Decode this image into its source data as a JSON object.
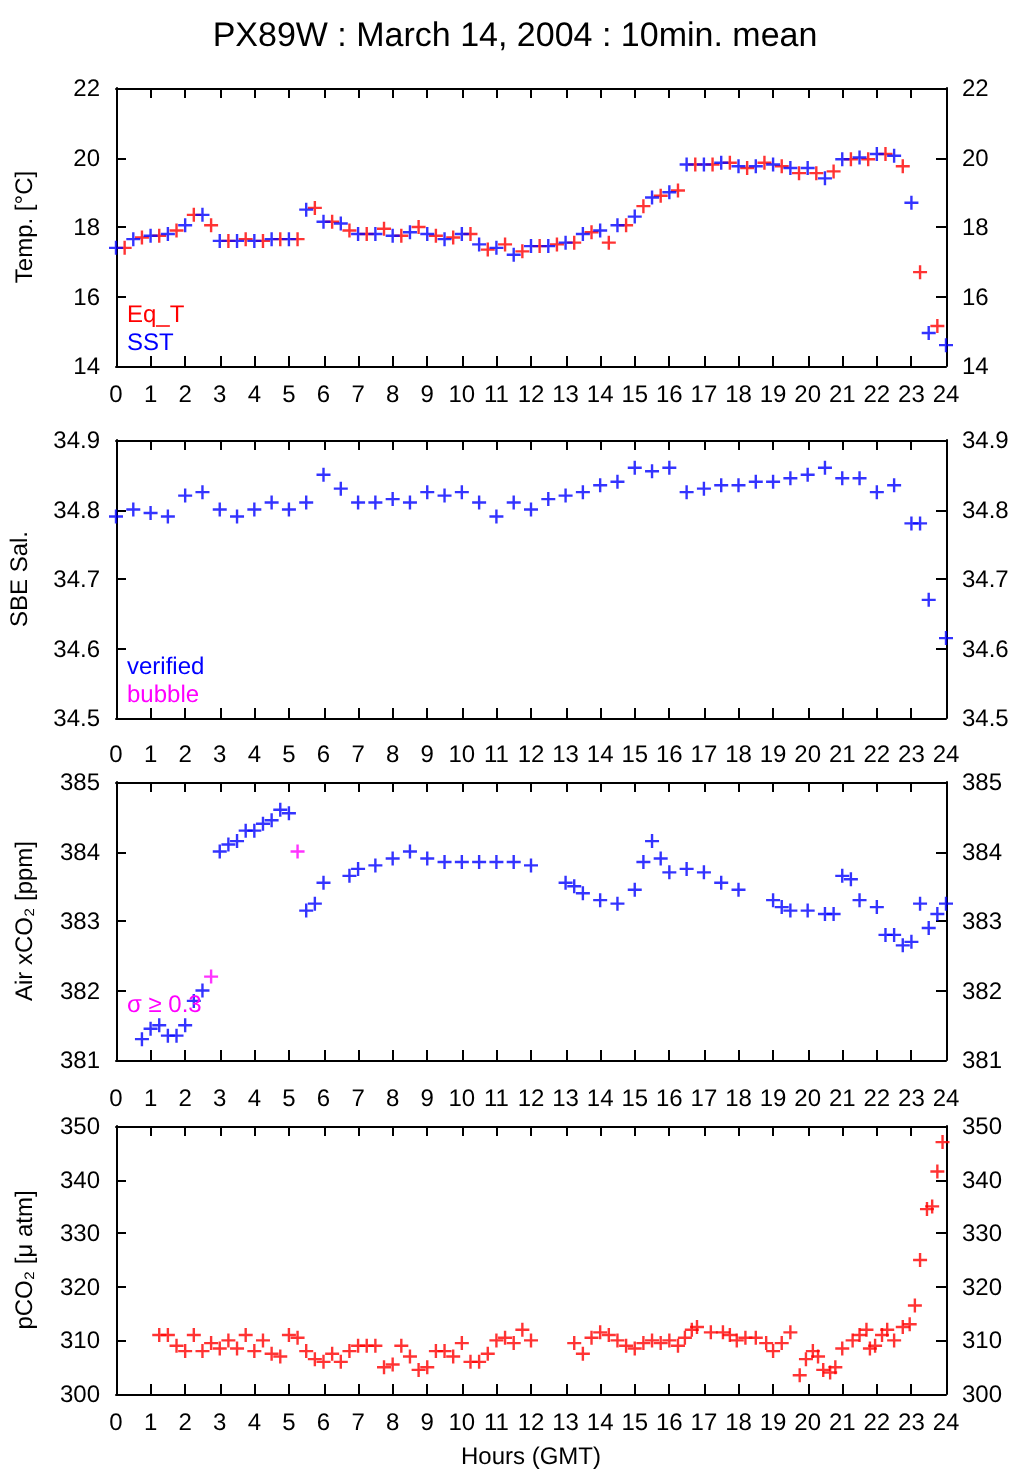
{
  "chart_data": [
    {
      "type": "scatter",
      "title": "PX89W : March 14, 2004 : 10min. mean",
      "ylabel": "Temp. [°C]",
      "marker": "cross",
      "legend": "bottom left",
      "grid": false,
      "xlim": [
        0,
        24
      ],
      "xticks": [
        0,
        1,
        2,
        3,
        4,
        5,
        6,
        7,
        8,
        9,
        10,
        11,
        12,
        13,
        14,
        15,
        16,
        17,
        18,
        19,
        20,
        21,
        22,
        23,
        24
      ],
      "ylim": [
        14,
        22
      ],
      "yticks": [
        14,
        16,
        18,
        20,
        22
      ],
      "y2lim": [
        14,
        22
      ],
      "y2ticks": [
        14,
        16,
        18,
        20,
        22
      ],
      "series": [
        {
          "name": "Eq_T",
          "color": "#ff0000",
          "x": [
            0.25,
            0.75,
            1.25,
            1.75,
            2.25,
            2.75,
            3.25,
            3.75,
            4.25,
            4.75,
            5.25,
            5.75,
            6.25,
            6.75,
            7.25,
            7.75,
            8.25,
            8.75,
            9.25,
            9.75,
            10.25,
            10.75,
            11.25,
            11.75,
            12.25,
            12.75,
            13.25,
            13.75,
            14.25,
            14.75,
            15.25,
            15.75,
            16.25,
            16.75,
            17.25,
            17.75,
            18.25,
            18.75,
            19.25,
            19.75,
            20.25,
            20.75,
            21.25,
            21.75,
            22.25,
            22.75,
            23.25,
            23.75
          ],
          "values": [
            17.4,
            17.7,
            17.75,
            17.9,
            18.35,
            18.05,
            17.6,
            17.65,
            17.6,
            17.65,
            17.65,
            18.55,
            18.15,
            17.9,
            17.8,
            17.95,
            17.75,
            18.0,
            17.75,
            17.7,
            17.8,
            17.35,
            17.5,
            17.3,
            17.45,
            17.5,
            17.55,
            17.85,
            17.55,
            18.05,
            18.6,
            18.9,
            19.05,
            19.8,
            19.8,
            19.85,
            19.7,
            19.85,
            19.75,
            19.55,
            19.55,
            19.6,
            19.95,
            19.95,
            20.1,
            19.75,
            16.7,
            15.15
          ]
        },
        {
          "name": "SST",
          "color": "#0000ff",
          "x": [
            0,
            0.5,
            1,
            1.5,
            2,
            2.5,
            3,
            3.5,
            4,
            4.5,
            5,
            5.5,
            6,
            6.5,
            7,
            7.5,
            8,
            8.5,
            9,
            9.5,
            10,
            10.5,
            11,
            11.5,
            12,
            12.5,
            13,
            13.5,
            14,
            14.5,
            15,
            15.5,
            16,
            16.5,
            17,
            17.5,
            18,
            18.5,
            19,
            19.5,
            20,
            20.5,
            21,
            21.5,
            22,
            22.5,
            23,
            23.5,
            24
          ],
          "values": [
            17.4,
            17.65,
            17.75,
            17.8,
            18.05,
            18.35,
            17.6,
            17.6,
            17.6,
            17.65,
            17.65,
            18.5,
            18.15,
            18.1,
            17.8,
            17.8,
            17.75,
            17.85,
            17.8,
            17.65,
            17.8,
            17.5,
            17.4,
            17.2,
            17.45,
            17.45,
            17.55,
            17.8,
            17.9,
            18.05,
            18.3,
            18.85,
            19.0,
            19.8,
            19.8,
            19.85,
            19.75,
            19.75,
            19.8,
            19.7,
            19.7,
            19.4,
            19.95,
            20.0,
            20.1,
            20.05,
            18.7,
            14.95,
            14.6
          ]
        }
      ]
    },
    {
      "type": "scatter",
      "ylabel": "SBE Sal.",
      "marker": "cross",
      "legend": "bottom left",
      "grid": false,
      "tick_labels": "y",
      "xlim": [
        0,
        24
      ],
      "xticks": [
        0,
        1,
        2,
        3,
        4,
        5,
        6,
        7,
        8,
        9,
        10,
        11,
        12,
        13,
        14,
        15,
        16,
        17,
        18,
        19,
        20,
        21,
        22,
        23,
        24
      ],
      "ylim": [
        34.5,
        34.9
      ],
      "yticks": [
        34.5,
        34.6,
        34.7,
        34.8,
        34.9
      ],
      "y2lim": [
        34.5,
        34.9
      ],
      "y2ticks": [
        34.5,
        34.6,
        34.7,
        34.8,
        34.9
      ],
      "series": [
        {
          "name": "verified",
          "color": "#0000ff",
          "x": [
            0,
            0.5,
            1,
            1.5,
            2,
            2.5,
            3,
            3.5,
            4,
            4.5,
            5,
            5.5,
            6,
            6.5,
            7,
            7.5,
            8,
            8.5,
            9,
            9.5,
            10,
            10.5,
            11,
            11.5,
            12,
            12.5,
            13,
            13.5,
            14,
            14.5,
            15,
            15.5,
            16,
            16.5,
            17,
            17.5,
            18,
            18.5,
            19,
            19.5,
            20,
            20.5,
            21,
            21.5,
            22,
            22.5,
            23,
            23.25,
            23.5,
            24
          ],
          "values": [
            34.79,
            34.8,
            34.795,
            34.79,
            34.82,
            34.825,
            34.8,
            34.79,
            34.8,
            34.81,
            34.8,
            34.81,
            34.85,
            34.83,
            34.81,
            34.81,
            34.815,
            34.81,
            34.825,
            34.82,
            34.825,
            34.81,
            34.79,
            34.81,
            34.8,
            34.815,
            34.82,
            34.825,
            34.835,
            34.84,
            34.86,
            34.855,
            34.86,
            34.825,
            34.83,
            34.835,
            34.835,
            34.84,
            34.84,
            34.845,
            34.85,
            34.86,
            34.845,
            34.845,
            34.825,
            34.835,
            34.78,
            34.78,
            34.67,
            34.615
          ]
        },
        {
          "name": "bubble",
          "color": "#ff00ff"
        }
      ]
    },
    {
      "type": "scatter",
      "ylabel": "Air xCO₂ [ppm]",
      "marker": "cross",
      "legend": "bottom left",
      "grid": false,
      "tick_labels": "y",
      "xlim": [
        0,
        24
      ],
      "xticks": [
        0,
        1,
        2,
        3,
        4,
        5,
        6,
        7,
        8,
        9,
        10,
        11,
        12,
        13,
        14,
        15,
        16,
        17,
        18,
        19,
        20,
        21,
        22,
        23,
        24
      ],
      "x2lim": [
        0,
        24
      ],
      "x2ticks": [
        0,
        1,
        2,
        3,
        4,
        5,
        6,
        7,
        8,
        9,
        10,
        11,
        12,
        13,
        14,
        15,
        16,
        17,
        18,
        19,
        20,
        21,
        22,
        23,
        24
      ],
      "ylim": [
        381,
        385
      ],
      "yticks": [
        381,
        382,
        383,
        384,
        385
      ],
      "y2lim": [
        381,
        385
      ],
      "y2ticks": [
        381,
        382,
        383,
        384,
        385
      ],
      "series": [
        {
          "color": "#0000ff",
          "x": [
            0.75,
            1,
            1.25,
            1.5,
            1.75,
            2,
            2.25,
            2.5,
            3,
            3.25,
            3.5,
            3.75,
            4,
            4.25,
            4.5,
            4.75,
            5,
            5.5,
            5.75,
            6,
            6.75,
            7,
            7.5,
            8,
            8.5,
            9,
            9.5,
            10,
            10.5,
            11,
            11.5,
            12,
            13,
            13.25,
            13.5,
            14,
            14.5,
            15,
            15.25,
            15.5,
            15.75,
            16,
            16.5,
            17,
            17.5,
            18,
            19,
            19.25,
            19.5,
            20,
            20.5,
            20.75,
            21,
            21.25,
            21.5,
            22,
            22.25,
            22.5,
            22.75,
            23,
            23.25,
            23.5,
            23.75,
            24
          ],
          "values": [
            381.3,
            381.45,
            381.5,
            381.35,
            381.35,
            381.5,
            381.85,
            382.0,
            384.0,
            384.1,
            384.15,
            384.3,
            384.3,
            384.4,
            384.45,
            384.6,
            384.55,
            383.15,
            383.25,
            383.55,
            383.65,
            383.75,
            383.8,
            383.9,
            384.0,
            383.9,
            383.85,
            383.85,
            383.85,
            383.85,
            383.85,
            383.8,
            383.55,
            383.5,
            383.4,
            383.3,
            383.25,
            383.45,
            383.85,
            384.15,
            383.9,
            383.7,
            383.75,
            383.7,
            383.55,
            383.45,
            383.3,
            383.2,
            383.15,
            383.15,
            383.1,
            383.1,
            383.65,
            383.6,
            383.3,
            383.2,
            382.8,
            382.8,
            382.65,
            382.7,
            383.25,
            382.9,
            383.1,
            383.25
          ]
        },
        {
          "name": "σ ≥ 0.3",
          "color": "#ff00ff",
          "x": [
            2.75,
            5.25
          ],
          "values": [
            382.2,
            384.0
          ]
        }
      ]
    },
    {
      "type": "scatter",
      "ylabel": "pCO₂ [μ atm]",
      "xlabel": "Hours (GMT)",
      "marker": "cross",
      "grid": false,
      "xlim": [
        0,
        24
      ],
      "xticks": [
        0,
        1,
        2,
        3,
        4,
        5,
        6,
        7,
        8,
        9,
        10,
        11,
        12,
        13,
        14,
        15,
        16,
        17,
        18,
        19,
        20,
        21,
        22,
        23,
        24
      ],
      "x2lim": [
        0,
        24
      ],
      "x2ticks": [
        0,
        1,
        2,
        3,
        4,
        5,
        6,
        7,
        8,
        9,
        10,
        11,
        12,
        13,
        14,
        15,
        16,
        17,
        18,
        19,
        20,
        21,
        22,
        23,
        24
      ],
      "ylim": [
        300,
        350
      ],
      "yticks": [
        300,
        310,
        320,
        330,
        340,
        350
      ],
      "y2lim": [
        300,
        350
      ],
      "y2ticks": [
        300,
        310,
        320,
        330,
        340,
        350
      ],
      "series": [
        {
          "color": "#ff0000",
          "x": [
            1.25,
            1.5,
            1.75,
            2,
            2.25,
            2.5,
            2.75,
            3,
            3.25,
            3.5,
            3.75,
            4,
            4.25,
            4.5,
            4.75,
            5,
            5.25,
            5.5,
            5.75,
            6,
            6.25,
            6.5,
            6.75,
            7,
            7.25,
            7.5,
            7.75,
            8,
            8.25,
            8.5,
            8.75,
            9,
            9.25,
            9.5,
            9.75,
            10,
            10.25,
            10.5,
            10.75,
            11,
            11.25,
            11.5,
            11.75,
            12,
            13.25,
            13.5,
            13.75,
            14,
            14.25,
            14.5,
            14.75,
            15,
            15.25,
            15.5,
            15.75,
            16,
            16.25,
            16.45,
            16.65,
            16.8,
            17.2,
            17.55,
            17.75,
            17.95,
            18.2,
            18.5,
            18.8,
            19,
            19.25,
            19.5,
            19.77,
            19.95,
            20.15,
            20.3,
            20.45,
            20.65,
            20.8,
            21,
            21.3,
            21.5,
            21.7,
            21.8,
            21.95,
            22.15,
            22.3,
            22.5,
            22.75,
            22.95,
            23.1,
            23.25,
            23.45,
            23.6,
            23.75,
            23.9
          ],
          "values": [
            311,
            311,
            309,
            308,
            311,
            308,
            309.5,
            308.5,
            310,
            308.5,
            311,
            308,
            310,
            307.5,
            307,
            311,
            310.5,
            308,
            306.5,
            306,
            307.5,
            306,
            308,
            309,
            309,
            309,
            305,
            305.5,
            309,
            307,
            304.5,
            305,
            308,
            308,
            307,
            309.5,
            306,
            306,
            307.5,
            310,
            310.5,
            309.5,
            312,
            310,
            309.5,
            307.5,
            310.5,
            311.5,
            311,
            310,
            309,
            308.5,
            309.5,
            310,
            309.5,
            310,
            309,
            310.5,
            312,
            312.5,
            311.5,
            311.5,
            311,
            310,
            310.5,
            310.5,
            309.5,
            308,
            309.5,
            311.5,
            303.5,
            306.5,
            308,
            307,
            304.5,
            304,
            305,
            308.5,
            310,
            311,
            312,
            308.5,
            309,
            311,
            312,
            310,
            312.5,
            313,
            316.5,
            325,
            334.5,
            335,
            341.5,
            347
          ]
        }
      ]
    }
  ]
}
